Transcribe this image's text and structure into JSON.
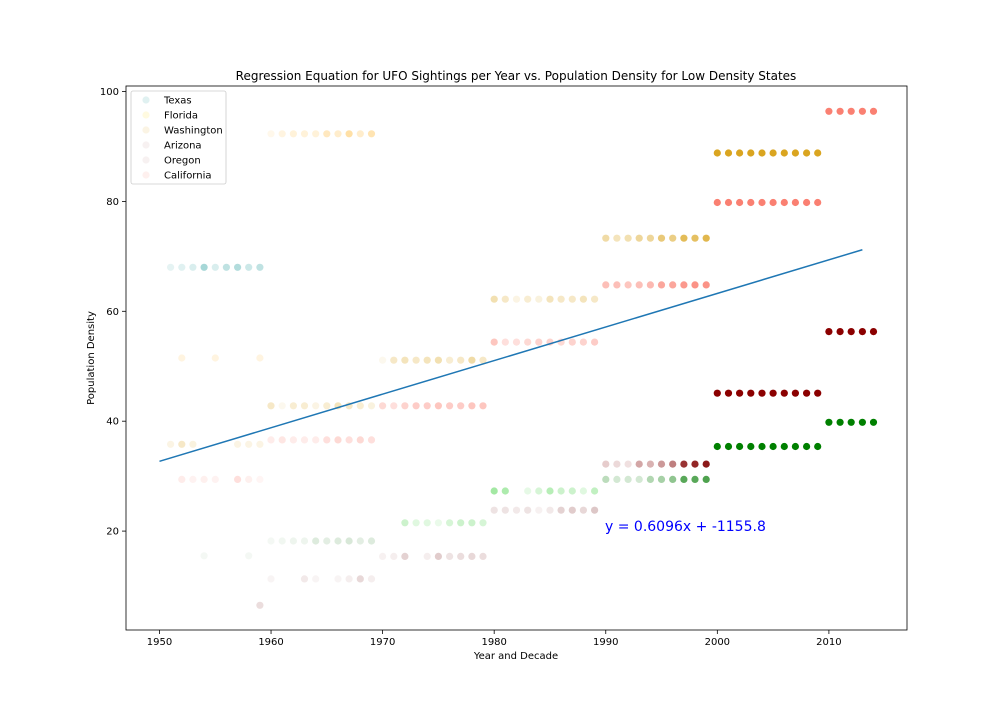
{
  "chart_data": {
    "type": "scatter",
    "title": "Regression Equation for UFO Sightings per Year vs. Population Density for Low Density States",
    "xlabel": "Year and Decade",
    "ylabel": "Population Density",
    "xlim": [
      1947,
      2017
    ],
    "ylim": [
      2,
      101
    ],
    "xticks": [
      1950,
      1960,
      1970,
      1980,
      1990,
      2000,
      2010
    ],
    "yticks": [
      20,
      40,
      60,
      80,
      100
    ],
    "legend": {
      "placement": "top-left",
      "entries": [
        "Texas",
        "Florida",
        "Washington",
        "Arizona",
        "Oregon",
        "California"
      ]
    },
    "regression": {
      "equation": "y = 0.6096x + -1155.8",
      "color": "#0000ff",
      "line_color": "#1f77b4",
      "line": {
        "x": [
          1950,
          2013
        ],
        "y": [
          32.7,
          71.2
        ]
      }
    },
    "groups": [
      {
        "series": "Texas",
        "color": "#008b8b",
        "density": 68.0,
        "x": [
          1951,
          1952,
          1953,
          1954,
          1955,
          1956,
          1957,
          1958,
          1959
        ],
        "alpha": [
          0.1,
          0.12,
          0.15,
          0.35,
          0.15,
          0.25,
          0.3,
          0.2,
          0.25
        ]
      },
      {
        "series": "Florida",
        "color": "#ffa500",
        "density": 92.3,
        "x": [
          1960,
          1961,
          1962,
          1963,
          1964,
          1965,
          1966,
          1967,
          1968,
          1969
        ],
        "alpha": [
          0.08,
          0.12,
          0.15,
          0.15,
          0.15,
          0.25,
          0.2,
          0.35,
          0.2,
          0.3
        ]
      },
      {
        "series": "Florida",
        "color": "#ffa500",
        "density": 51.5,
        "x": [
          1952,
          1955,
          1959
        ],
        "alpha": [
          0.12,
          0.12,
          0.12
        ]
      },
      {
        "series": "Washington",
        "color": "#daa520",
        "density": 42.8,
        "x": [
          1960,
          1961,
          1962,
          1963,
          1964,
          1965,
          1966,
          1967,
          1968,
          1969
        ],
        "alpha": [
          0.25,
          0.08,
          0.2,
          0.2,
          0.12,
          0.2,
          0.3,
          0.25,
          0.2,
          0.15
        ]
      },
      {
        "series": "Washington",
        "color": "#daa520",
        "density": 35.8,
        "x": [
          1951,
          1952,
          1953,
          1957,
          1958,
          1959
        ],
        "alpha": [
          0.12,
          0.25,
          0.15,
          0.12,
          0.12,
          0.12
        ]
      },
      {
        "series": "Oregon",
        "color": "#fa8072",
        "density": 36.6,
        "x": [
          1960,
          1961,
          1962,
          1963,
          1964,
          1965,
          1966,
          1967,
          1968,
          1969
        ],
        "alpha": [
          0.15,
          0.2,
          0.15,
          0.15,
          0.15,
          0.25,
          0.3,
          0.25,
          0.3,
          0.25
        ]
      },
      {
        "series": "Oregon",
        "color": "#fa8072",
        "density": 29.4,
        "x": [
          1952,
          1953,
          1954,
          1955,
          1957,
          1958,
          1959
        ],
        "alpha": [
          0.15,
          0.1,
          0.12,
          0.1,
          0.25,
          0.12,
          0.08
        ]
      },
      {
        "series": "California",
        "color": "#8fbc8f",
        "density": 18.2,
        "x": [
          1960,
          1961,
          1962,
          1963,
          1964,
          1965,
          1966,
          1967,
          1968,
          1969
        ],
        "alpha": [
          0.1,
          0.12,
          0.15,
          0.15,
          0.3,
          0.25,
          0.3,
          0.35,
          0.25,
          0.3
        ]
      },
      {
        "series": "California",
        "color": "#8fbc8f",
        "density": 15.5,
        "x": [
          1954,
          1958
        ],
        "alpha": [
          0.1,
          0.1
        ]
      },
      {
        "series": "Arizona",
        "color": "#bc8f8f",
        "density": 11.3,
        "x": [
          1960,
          1963,
          1964,
          1966,
          1967,
          1968,
          1969
        ],
        "alpha": [
          0.1,
          0.2,
          0.1,
          0.1,
          0.15,
          0.35,
          0.15
        ]
      },
      {
        "series": "Arizona",
        "color": "#bc8f8f",
        "density": 6.5,
        "x": [
          1959
        ],
        "alpha": [
          0.3
        ]
      },
      {
        "series": "Florida",
        "color": "#daa520",
        "density": 51.1,
        "x": [
          1970,
          1971,
          1972,
          1973,
          1974,
          1975,
          1976,
          1977,
          1978,
          1979
        ],
        "alpha": [
          0.08,
          0.25,
          0.3,
          0.25,
          0.3,
          0.35,
          0.2,
          0.25,
          0.4,
          0.25
        ]
      },
      {
        "series": "Oregon",
        "color": "#fa8072",
        "density": 42.8,
        "x": [
          1970,
          1971,
          1972,
          1973,
          1974,
          1975,
          1976,
          1977,
          1978,
          1979
        ],
        "alpha": [
          0.3,
          0.25,
          0.35,
          0.4,
          0.4,
          0.45,
          0.4,
          0.4,
          0.45,
          0.45
        ]
      },
      {
        "series": "California",
        "color": "#32cd32",
        "density": 21.5,
        "x": [
          1972,
          1973,
          1974,
          1975,
          1976,
          1977,
          1978,
          1979
        ],
        "alpha": [
          0.25,
          0.15,
          0.15,
          0.1,
          0.2,
          0.25,
          0.25,
          0.2
        ]
      },
      {
        "series": "Arizona",
        "color": "#bc8f8f",
        "density": 15.4,
        "x": [
          1970,
          1971,
          1972,
          1974,
          1975,
          1976,
          1977,
          1978,
          1979
        ],
        "alpha": [
          0.12,
          0.15,
          0.4,
          0.15,
          0.45,
          0.25,
          0.3,
          0.35,
          0.3
        ]
      },
      {
        "series": "Washington",
        "color": "#daa520",
        "density": 62.2,
        "x": [
          1980,
          1981,
          1982,
          1983,
          1984,
          1985,
          1986,
          1987,
          1988,
          1989
        ],
        "alpha": [
          0.35,
          0.25,
          0.12,
          0.2,
          0.15,
          0.3,
          0.25,
          0.25,
          0.3,
          0.25
        ]
      },
      {
        "series": "Oregon",
        "color": "#fa8072",
        "density": 54.4,
        "x": [
          1980,
          1981,
          1982,
          1983,
          1984,
          1985,
          1986,
          1987,
          1988,
          1989
        ],
        "alpha": [
          0.45,
          0.25,
          0.25,
          0.3,
          0.35,
          0.35,
          0.3,
          0.35,
          0.35,
          0.4
        ]
      },
      {
        "series": "California",
        "color": "#32cd32",
        "density": 27.3,
        "x": [
          1980,
          1981,
          1983,
          1984,
          1985,
          1986,
          1987,
          1988,
          1989
        ],
        "alpha": [
          0.45,
          0.4,
          0.12,
          0.2,
          0.35,
          0.25,
          0.25,
          0.15,
          0.3
        ]
      },
      {
        "series": "Arizona",
        "color": "#bc8f8f",
        "density": 23.8,
        "x": [
          1980,
          1981,
          1982,
          1983,
          1984,
          1985,
          1986,
          1987,
          1988,
          1989
        ],
        "alpha": [
          0.25,
          0.25,
          0.2,
          0.25,
          0.12,
          0.2,
          0.4,
          0.45,
          0.35,
          0.5
        ]
      },
      {
        "series": "Florida",
        "color": "#daa520",
        "density": 73.3,
        "x": [
          1990,
          1991,
          1992,
          1993,
          1994,
          1995,
          1996,
          1997,
          1998,
          1999
        ],
        "alpha": [
          0.4,
          0.3,
          0.35,
          0.45,
          0.45,
          0.6,
          0.55,
          0.75,
          0.7,
          0.8
        ]
      },
      {
        "series": "Oregon",
        "color": "#fa8072",
        "density": 64.8,
        "x": [
          1990,
          1991,
          1992,
          1993,
          1994,
          1995,
          1996,
          1997,
          1998,
          1999
        ],
        "alpha": [
          0.5,
          0.5,
          0.45,
          0.5,
          0.55,
          0.7,
          0.7,
          0.8,
          0.85,
          0.85
        ]
      },
      {
        "series": "Arizona",
        "color": "#800000",
        "density": 32.2,
        "x": [
          1990,
          1991,
          1992,
          1993,
          1994,
          1995,
          1996,
          1997,
          1998,
          1999
        ],
        "alpha": [
          0.2,
          0.15,
          0.12,
          0.35,
          0.3,
          0.4,
          0.5,
          0.8,
          0.85,
          0.9
        ]
      },
      {
        "series": "California",
        "color": "#228b22",
        "density": 29.4,
        "x": [
          1990,
          1991,
          1992,
          1993,
          1994,
          1995,
          1996,
          1997,
          1998,
          1999
        ],
        "alpha": [
          0.3,
          0.2,
          0.2,
          0.2,
          0.35,
          0.4,
          0.5,
          0.75,
          0.75,
          0.8
        ]
      },
      {
        "series": "Florida",
        "color": "#daa520",
        "density": 88.8,
        "x": [
          2000,
          2001,
          2002,
          2003,
          2004,
          2005,
          2006,
          2007,
          2008,
          2009
        ],
        "alpha": [
          1,
          1,
          1,
          1,
          1,
          1,
          1,
          1,
          1,
          1
        ]
      },
      {
        "series": "Oregon",
        "color": "#fa8072",
        "density": 79.8,
        "x": [
          2000,
          2001,
          2002,
          2003,
          2004,
          2005,
          2006,
          2007,
          2008,
          2009
        ],
        "alpha": [
          1,
          1,
          1,
          1,
          1,
          1,
          1,
          1,
          1,
          1
        ]
      },
      {
        "series": "Arizona",
        "color": "#8b0000",
        "density": 45.1,
        "x": [
          2000,
          2001,
          2002,
          2003,
          2004,
          2005,
          2006,
          2007,
          2008,
          2009
        ],
        "alpha": [
          1,
          1,
          1,
          1,
          1,
          1,
          1,
          1,
          1,
          1
        ]
      },
      {
        "series": "California",
        "color": "#008000",
        "density": 35.4,
        "x": [
          2000,
          2001,
          2002,
          2003,
          2004,
          2005,
          2006,
          2007,
          2008,
          2009
        ],
        "alpha": [
          1,
          1,
          1,
          1,
          1,
          1,
          1,
          1,
          1,
          1
        ]
      },
      {
        "series": "Oregon",
        "color": "#fa8072",
        "density": 96.4,
        "x": [
          2010,
          2011,
          2012,
          2013,
          2014
        ],
        "alpha": [
          1,
          1,
          1,
          1,
          1
        ]
      },
      {
        "series": "Arizona",
        "color": "#8b0000",
        "density": 56.3,
        "x": [
          2010,
          2011,
          2012,
          2013,
          2014
        ],
        "alpha": [
          1,
          1,
          1,
          1,
          1
        ]
      },
      {
        "series": "California",
        "color": "#008000",
        "density": 39.8,
        "x": [
          2010,
          2011,
          2012,
          2013,
          2014
        ],
        "alpha": [
          1,
          1,
          1,
          1,
          1
        ]
      }
    ]
  }
}
